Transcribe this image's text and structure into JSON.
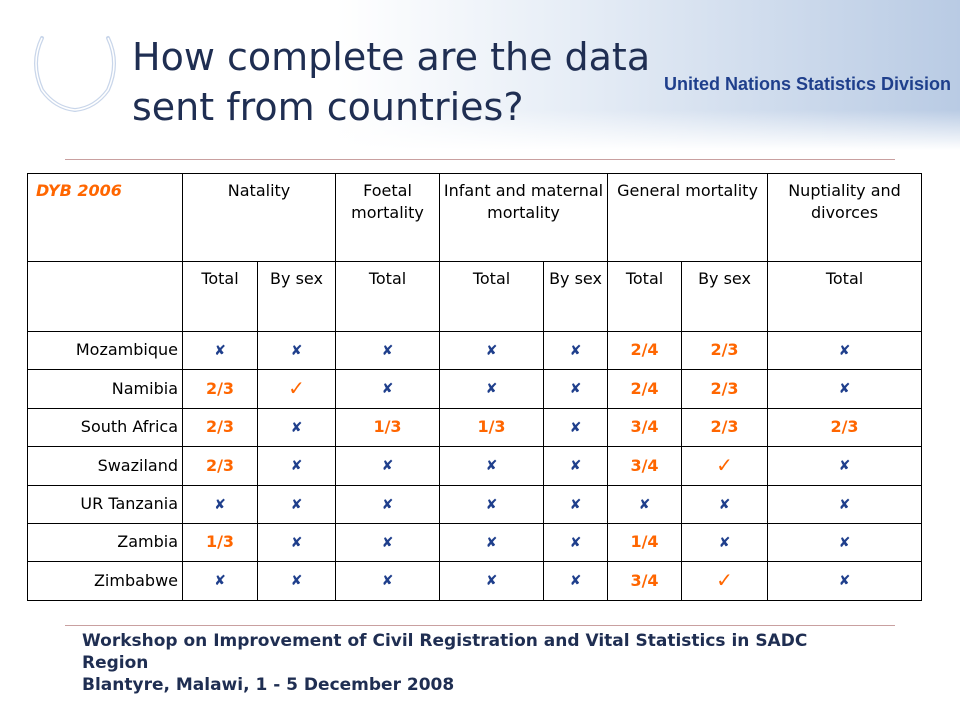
{
  "slide": {
    "title_line1": "How complete are the data",
    "title_line2": "sent from countries?",
    "org_name": "United Nations Statistics Division",
    "logo_icon": "un-emblem-icon"
  },
  "table": {
    "corner_label": "DYB 2006",
    "groups": [
      {
        "label": "Natality",
        "span": 2
      },
      {
        "label": "Foetal mortality",
        "span": 1
      },
      {
        "label": "Infant and maternal mortality",
        "span": 2
      },
      {
        "label": "General mortality",
        "span": 2
      },
      {
        "label": "Nuptiality and divorces",
        "span": 1
      }
    ],
    "subheaders": [
      "Total",
      "By sex",
      "Total",
      "Total",
      "By sex",
      "Total",
      "By sex",
      "Total"
    ],
    "rows": [
      {
        "country": "Mozambique",
        "cells": [
          "x",
          "x",
          "x",
          "x",
          "x",
          "2/4",
          "2/3",
          "x"
        ]
      },
      {
        "country": "Namibia",
        "cells": [
          "2/3",
          "check",
          "x",
          "x",
          "x",
          "2/4",
          "2/3",
          "x"
        ]
      },
      {
        "country": "South Africa",
        "cells": [
          "2/3",
          "x",
          "1/3",
          "1/3",
          "x",
          "3/4",
          "2/3",
          "2/3"
        ]
      },
      {
        "country": "Swaziland",
        "cells": [
          "2/3",
          "x",
          "x",
          "x",
          "x",
          "3/4",
          "check",
          "x"
        ]
      },
      {
        "country": "UR Tanzania",
        "cells": [
          "x",
          "x",
          "x",
          "x",
          "x",
          "x",
          "x",
          "x"
        ]
      },
      {
        "country": "Zambia",
        "cells": [
          "1/3",
          "x",
          "x",
          "x",
          "x",
          "1/4",
          "x",
          "x"
        ]
      },
      {
        "country": "Zimbabwe",
        "cells": [
          "x",
          "x",
          "x",
          "x",
          "x",
          "3/4",
          "check",
          "x"
        ]
      }
    ],
    "symbols": {
      "x": "✘",
      "check": "✓"
    },
    "colors": {
      "value": "#ff6600",
      "cross": "#1f3f8c"
    }
  },
  "footer": {
    "line1": "Workshop on Improvement of Civil Registration and Vital Statistics in SADC",
    "line2": "Region",
    "line3": "Blantyre, Malawi, 1 - 5 December 2008"
  }
}
